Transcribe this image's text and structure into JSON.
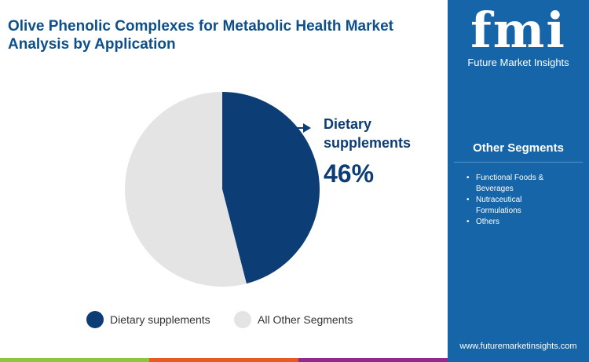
{
  "title": "Olive Phenolic Complexes for Metabolic Health Market Analysis by Application",
  "brand": {
    "logo": "fmi",
    "name": "Future Market Insights",
    "url": "www.futuremarketinsights.com",
    "panel_color": "#1565a8"
  },
  "other_segments": {
    "title": "Other Segments",
    "items": [
      "Functional Foods & Beverages",
      "Nutraceutical Formulations",
      "Others"
    ]
  },
  "chart_data": {
    "type": "pie",
    "categories": [
      "Dietary supplements",
      "All Other Segments"
    ],
    "values": [
      46,
      54
    ],
    "colors": [
      "#0d3d75",
      "#e4e4e4"
    ],
    "highlight": {
      "label": "Dietary supplements",
      "value": "46%"
    },
    "legend_placement": "bottom"
  },
  "stripe_colors": [
    "#8cc63f",
    "#e85a24",
    "#8e2b8c"
  ]
}
